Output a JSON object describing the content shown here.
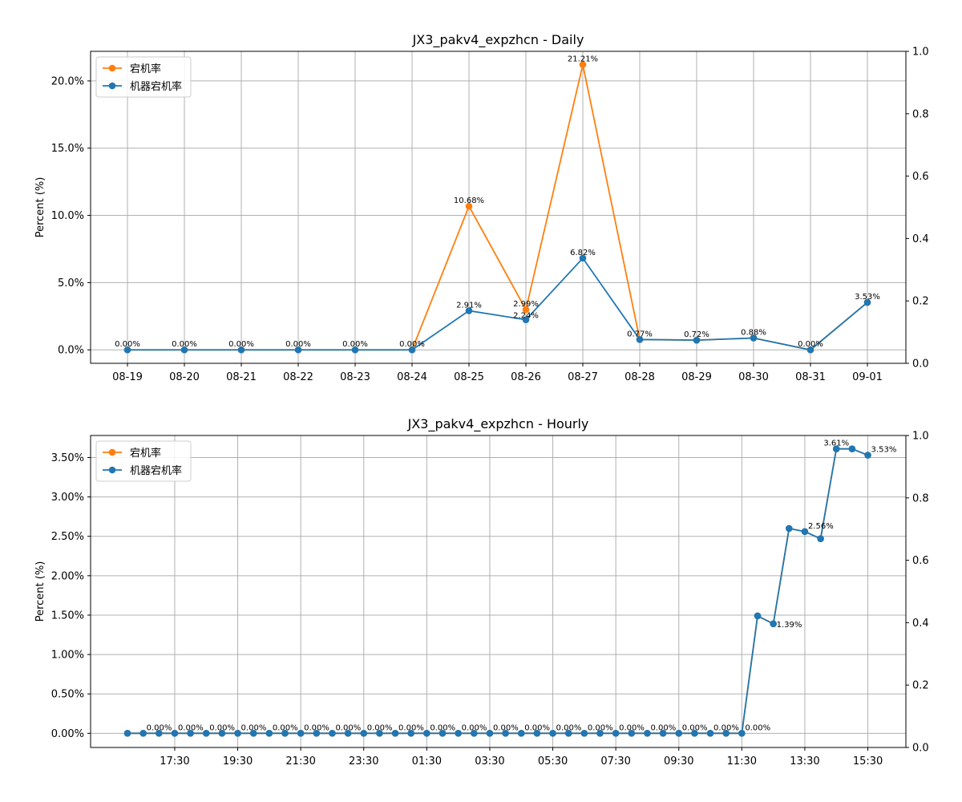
{
  "chart_data": [
    {
      "type": "line",
      "title": "JX3_pakv4_expzhcn - Daily",
      "xlabel": "",
      "ylabel": "Percent (%)",
      "ylim": [
        -1.0,
        22.2
      ],
      "y_ticks": [
        "0.0%",
        "5.0%",
        "10.0%",
        "15.0%",
        "20.0%"
      ],
      "y_tick_values": [
        0,
        5,
        10,
        15,
        20
      ],
      "right_ylim": [
        0,
        1
      ],
      "right_y_ticks": [
        "0.0",
        "0.2",
        "0.4",
        "0.6",
        "0.8",
        "1.0"
      ],
      "grid": true,
      "legend_position": "upper-left",
      "categories": [
        "08-19",
        "08-20",
        "08-21",
        "08-22",
        "08-23",
        "08-24",
        "08-25",
        "08-26",
        "08-27",
        "08-28",
        "08-29",
        "08-30",
        "08-31",
        "09-01"
      ],
      "series": [
        {
          "name": "宕机率",
          "color": "#ff7f0e",
          "values": [
            0,
            0,
            0,
            0,
            0,
            0,
            10.68,
            2.99,
            21.21,
            0.77,
            0.72,
            0.88,
            0,
            3.53
          ],
          "labels": [
            null,
            null,
            null,
            null,
            null,
            null,
            "10.68%",
            "2.99%",
            "21.21%",
            null,
            null,
            null,
            null,
            null
          ]
        },
        {
          "name": "机器宕机率",
          "color": "#1f77b4",
          "values": [
            0,
            0,
            0,
            0,
            0,
            0,
            2.91,
            2.24,
            6.82,
            0.77,
            0.72,
            0.88,
            0,
            3.53
          ],
          "labels": [
            "0.00%",
            "0.00%",
            "0.00%",
            "0.00%",
            "0.00%",
            "0.00%",
            "2.91%",
            "2.24%",
            "6.82%",
            "0.77%",
            "0.72%",
            "0.88%",
            "0.00%",
            "3.53%"
          ]
        }
      ]
    },
    {
      "type": "line",
      "title": "JX3_pakv4_expzhcn - Hourly",
      "xlabel": "",
      "ylabel": "Percent (%)",
      "ylim": [
        -0.18,
        3.78
      ],
      "y_ticks": [
        "0.00%",
        "0.50%",
        "1.00%",
        "1.50%",
        "2.00%",
        "2.50%",
        "3.00%",
        "3.50%"
      ],
      "y_tick_values": [
        0,
        0.5,
        1.0,
        1.5,
        2.0,
        2.5,
        3.0,
        3.5
      ],
      "right_ylim": [
        0,
        1
      ],
      "right_y_ticks": [
        "0.0",
        "0.2",
        "0.4",
        "0.6",
        "0.8",
        "1.0"
      ],
      "grid": true,
      "legend_position": "upper-left",
      "x_ticks": [
        "17:30",
        "19:30",
        "21:30",
        "23:30",
        "01:30",
        "03:30",
        "05:30",
        "07:30",
        "09:30",
        "11:30",
        "13:30",
        "15:30"
      ],
      "x_tick_indices": [
        3,
        7,
        11,
        15,
        19,
        23,
        27,
        31,
        35,
        39,
        43,
        47
      ],
      "series": [
        {
          "name": "宕机率",
          "color": "#ff7f0e",
          "values": [
            0,
            0,
            0,
            0,
            0,
            0,
            0,
            0,
            0,
            0,
            0,
            0,
            0,
            0,
            0,
            0,
            0,
            0,
            0,
            0,
            0,
            0,
            0,
            0,
            0,
            0,
            0,
            0,
            0,
            0,
            0,
            0,
            0,
            0,
            0,
            0,
            0,
            0,
            0,
            0,
            1.49,
            1.39,
            2.6,
            2.56,
            2.47,
            3.61,
            3.61,
            3.53
          ],
          "labels": []
        },
        {
          "name": "机器宕机率",
          "color": "#1f77b4",
          "values": [
            0,
            0,
            0,
            0,
            0,
            0,
            0,
            0,
            0,
            0,
            0,
            0,
            0,
            0,
            0,
            0,
            0,
            0,
            0,
            0,
            0,
            0,
            0,
            0,
            0,
            0,
            0,
            0,
            0,
            0,
            0,
            0,
            0,
            0,
            0,
            0,
            0,
            0,
            0,
            0,
            1.49,
            1.39,
            2.6,
            2.56,
            2.47,
            3.61,
            3.61,
            3.53
          ],
          "labels": [
            null,
            "0.00%",
            null,
            "0.00%",
            null,
            "0.00%",
            null,
            "0.00%",
            null,
            "0.00%",
            null,
            "0.00%",
            null,
            "0.00%",
            null,
            "0.00%",
            null,
            "0.00%",
            null,
            "0.00%",
            null,
            "0.00%",
            null,
            "0.00%",
            null,
            "0.00%",
            null,
            "0.00%",
            null,
            "0.00%",
            null,
            "0.00%",
            null,
            "0.00%",
            null,
            "0.00%",
            null,
            "0.00%",
            null,
            "0.00%",
            null,
            "1.39%",
            null,
            "2.56%",
            null,
            "3.61%",
            null,
            "3.53%"
          ]
        }
      ]
    }
  ]
}
